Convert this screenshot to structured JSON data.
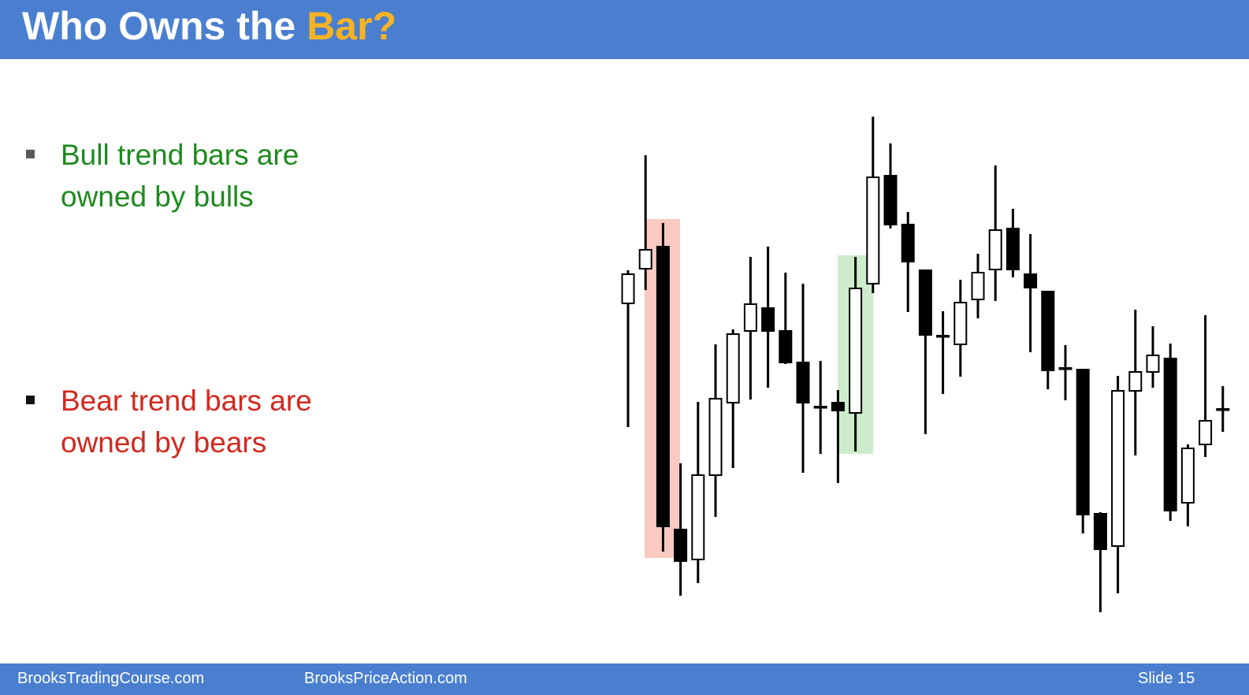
{
  "header": {
    "title": [
      "Who Owns the",
      "Bar?"
    ]
  },
  "bullets": [
    "Bull trend bars are owned by bulls",
    "Bear trend bars are owned by bears"
  ],
  "footer": {
    "left": "BrooksTradingCourse.com",
    "center": "BrooksPriceAction.com",
    "right": "Slide 15"
  },
  "chart_data": {
    "type": "candlestick",
    "open": [
      415,
      459,
      487,
      128,
      90,
      197,
      289,
      380,
      409,
      380,
      340,
      284,
      289,
      276,
      440,
      577,
      515,
      457,
      374,
      363,
      420,
      458,
      510,
      452,
      430,
      333,
      331,
      148,
      107,
      304,
      328,
      345,
      162,
      236,
      281
    ],
    "high": [
      457,
      603,
      517,
      212,
      290,
      363,
      382,
      474,
      487,
      454,
      440,
      342,
      305,
      474,
      652,
      618,
      531,
      457,
      405,
      445,
      478,
      590,
      535,
      503,
      431,
      362,
      332,
      150,
      323,
      407,
      386,
      364,
      236,
      400,
      310
    ],
    "low": [
      258,
      432,
      100,
      44,
      60,
      144,
      206,
      293,
      308,
      338,
      200,
      224,
      187,
      227,
      428,
      510,
      404,
      249,
      300,
      322,
      396,
      418,
      448,
      353,
      306,
      292,
      123,
      23,
      47,
      222,
      308,
      139,
      132,
      220,
      252
    ],
    "close": [
      452,
      483,
      132,
      88,
      197,
      294,
      376,
      414,
      380,
      340,
      289,
      283,
      279,
      434,
      575,
      515,
      468,
      375,
      373,
      416,
      454,
      508,
      458,
      435,
      330,
      332,
      147,
      103,
      304,
      328,
      349,
      152,
      231,
      266,
      280
    ],
    "ylim": [
      0,
      700
    ],
    "up_color": "#ffffff",
    "down_color": "#000000",
    "line_color": "#000000"
  }
}
